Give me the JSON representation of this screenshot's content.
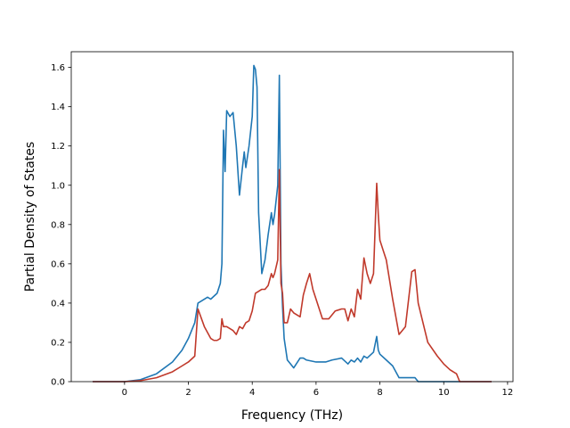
{
  "chart_data": {
    "type": "line",
    "xlabel": "Frequency (THz)",
    "ylabel": "Partial Density of States",
    "xlim": [
      -1.67,
      12.17
    ],
    "ylim": [
      0.0,
      1.68
    ],
    "x_ticks": [
      "0",
      "2",
      "4",
      "6",
      "8",
      "10",
      "12"
    ],
    "y_ticks": [
      "0.0",
      "0.2",
      "0.4",
      "0.6",
      "0.8",
      "1.0",
      "1.2",
      "1.4",
      "1.6"
    ],
    "grid": false,
    "legend": "none",
    "series": [
      {
        "color": "#1f77b4",
        "x": [
          -1.0,
          0.0,
          0.5,
          1.0,
          1.5,
          1.8,
          2.0,
          2.2,
          2.3,
          2.6,
          2.7,
          2.9,
          3.0,
          3.05,
          3.1,
          3.15,
          3.2,
          3.3,
          3.4,
          3.5,
          3.6,
          3.7,
          3.75,
          3.8,
          3.9,
          4.0,
          4.05,
          4.1,
          4.15,
          4.2,
          4.3,
          4.4,
          4.5,
          4.6,
          4.65,
          4.7,
          4.8,
          4.85,
          4.9,
          4.95,
          5.0,
          5.1,
          5.2,
          5.3,
          5.5,
          5.6,
          5.7,
          6.0,
          6.3,
          6.5,
          6.8,
          7.0,
          7.1,
          7.2,
          7.3,
          7.4,
          7.5,
          7.6,
          7.8,
          7.9,
          7.95,
          8.0,
          8.2,
          8.4,
          8.6,
          8.7,
          8.8,
          9.0,
          9.1,
          9.2,
          10.0,
          10.5,
          11.5
        ],
        "values": [
          0.0,
          0.0,
          0.01,
          0.04,
          0.1,
          0.16,
          0.22,
          0.3,
          0.4,
          0.43,
          0.42,
          0.45,
          0.5,
          0.6,
          1.28,
          1.07,
          1.38,
          1.35,
          1.37,
          1.2,
          0.95,
          1.1,
          1.17,
          1.09,
          1.2,
          1.35,
          1.61,
          1.59,
          1.5,
          0.86,
          0.55,
          0.62,
          0.75,
          0.86,
          0.8,
          0.85,
          1.0,
          1.56,
          0.6,
          0.38,
          0.22,
          0.11,
          0.09,
          0.07,
          0.12,
          0.12,
          0.11,
          0.1,
          0.1,
          0.11,
          0.12,
          0.09,
          0.11,
          0.1,
          0.12,
          0.1,
          0.13,
          0.12,
          0.15,
          0.23,
          0.16,
          0.14,
          0.11,
          0.08,
          0.02,
          0.02,
          0.02,
          0.02,
          0.02,
          0.0,
          0.0,
          0.0,
          0.0
        ]
      },
      {
        "color": "#c0392b",
        "x": [
          -1.0,
          0.0,
          0.5,
          1.0,
          1.5,
          1.8,
          2.0,
          2.2,
          2.3,
          2.5,
          2.7,
          2.8,
          2.9,
          3.0,
          3.05,
          3.1,
          3.2,
          3.4,
          3.5,
          3.6,
          3.7,
          3.8,
          3.9,
          4.0,
          4.1,
          4.2,
          4.3,
          4.4,
          4.5,
          4.6,
          4.65,
          4.7,
          4.8,
          4.85,
          4.9,
          4.95,
          5.0,
          5.1,
          5.2,
          5.3,
          5.5,
          5.6,
          5.7,
          5.8,
          5.9,
          6.0,
          6.2,
          6.4,
          6.6,
          6.8,
          6.9,
          7.0,
          7.1,
          7.2,
          7.3,
          7.4,
          7.5,
          7.6,
          7.7,
          7.8,
          7.9,
          7.95,
          8.0,
          8.1,
          8.2,
          8.4,
          8.6,
          8.8,
          9.0,
          9.1,
          9.2,
          9.5,
          9.8,
          10.0,
          10.2,
          10.4,
          10.5,
          11.5
        ],
        "values": [
          0.0,
          0.0,
          0.005,
          0.02,
          0.05,
          0.08,
          0.1,
          0.13,
          0.37,
          0.28,
          0.22,
          0.21,
          0.21,
          0.22,
          0.32,
          0.28,
          0.28,
          0.26,
          0.24,
          0.28,
          0.27,
          0.3,
          0.31,
          0.36,
          0.45,
          0.46,
          0.47,
          0.47,
          0.49,
          0.55,
          0.53,
          0.55,
          0.62,
          1.08,
          0.5,
          0.45,
          0.3,
          0.3,
          0.37,
          0.35,
          0.33,
          0.44,
          0.5,
          0.55,
          0.47,
          0.42,
          0.32,
          0.32,
          0.36,
          0.37,
          0.37,
          0.31,
          0.37,
          0.33,
          0.47,
          0.42,
          0.63,
          0.55,
          0.5,
          0.55,
          1.01,
          0.85,
          0.72,
          0.67,
          0.62,
          0.42,
          0.24,
          0.28,
          0.56,
          0.57,
          0.4,
          0.2,
          0.13,
          0.09,
          0.06,
          0.04,
          0.0,
          0.0
        ]
      }
    ]
  }
}
